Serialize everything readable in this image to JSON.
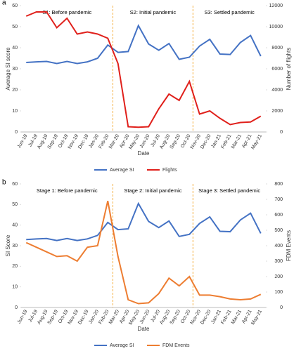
{
  "chart_data": [
    {
      "type": "line",
      "label": "a",
      "categories": [
        "Jun-19",
        "Jul-19",
        "Aug-19",
        "Sep-19",
        "Oct-19",
        "Nov-19",
        "Dec-19",
        "Jan-20",
        "Feb-20",
        "Mar-20",
        "Apr-20",
        "May-20",
        "Jun-20",
        "Jul-20",
        "Aug-20",
        "Sep-20",
        "Oct-20",
        "Nov-20",
        "Dec-20",
        "Jan-21",
        "Feb-21",
        "Mar-21",
        "Apr-21",
        "May-21"
      ],
      "series": [
        {
          "name": "Average SI",
          "color": "#4472c4",
          "values": [
            33,
            33.3,
            33.5,
            32.5,
            33.5,
            32.5,
            33.3,
            35,
            41.3,
            37.8,
            38.2,
            50.5,
            41.8,
            38.8,
            42,
            34.5,
            35.5,
            40.8,
            44,
            37,
            36.8,
            42.5,
            45.8,
            36
          ]
        },
        {
          "name": "Flights",
          "color": "#e0201b",
          "axis": "y2",
          "values": [
            11000,
            11400,
            11400,
            9900,
            10800,
            9300,
            9500,
            9300,
            8900,
            6500,
            500,
            450,
            500,
            2200,
            3600,
            3000,
            4800,
            1700,
            2000,
            1300,
            700,
            900,
            950,
            1500
          ]
        }
      ],
      "xlabel": "Date",
      "ylabel": "Average SI score",
      "y2label": "Number of flights",
      "ylim": [
        0,
        60
      ],
      "yticks": [
        0,
        10,
        20,
        30,
        40,
        50,
        60
      ],
      "y2lim": [
        0,
        12000
      ],
      "y2ticks": [
        0,
        2000,
        4000,
        6000,
        8000,
        10000,
        12000
      ],
      "dividers": [
        8.5,
        16.35
      ],
      "annotations": [
        "S1: Before pandemic",
        "S2: Initial pandemic",
        "S3: Settled pandemic"
      ],
      "legend": "bottom",
      "grid": false
    },
    {
      "type": "line",
      "label": "b",
      "categories": [
        "Jun-19",
        "Jul-19",
        "Aug-19",
        "Sep-19",
        "Oct-19",
        "Nov-19",
        "Dec-19",
        "Jan-20",
        "Feb-20",
        "Mar-20",
        "Apr-20",
        "May-20",
        "Jun-20",
        "Jul-20",
        "Aug-20",
        "Sep-20",
        "Oct-20",
        "Nov-20",
        "Dec-20",
        "Jan-21",
        "Feb-21",
        "Mar-21",
        "Apr-21",
        "May-21"
      ],
      "series": [
        {
          "name": "Average SI",
          "color": "#4472c4",
          "values": [
            33,
            33.3,
            33.5,
            32.5,
            33.5,
            32.5,
            33.3,
            35,
            41.3,
            37.8,
            38.2,
            50.5,
            41.8,
            38.8,
            42,
            34.5,
            35.5,
            40.8,
            44,
            37,
            36.8,
            42.5,
            45.8,
            36
          ]
        },
        {
          "name": "FDM Events",
          "color": "#ed7d31",
          "axis": "y2",
          "values": [
            420,
            390,
            360,
            330,
            335,
            300,
            390,
            400,
            690,
            330,
            50,
            25,
            30,
            90,
            190,
            140,
            200,
            80,
            80,
            70,
            55,
            50,
            55,
            85
          ]
        }
      ],
      "xlabel": "Date",
      "ylabel": "SI Score",
      "y2label": "FDM Events",
      "ylim": [
        0,
        60
      ],
      "yticks": [
        0,
        10,
        20,
        30,
        40,
        50,
        60
      ],
      "y2lim": [
        0,
        800
      ],
      "y2ticks": [
        0,
        100,
        200,
        300,
        400,
        500,
        600,
        700,
        800
      ],
      "dividers": [
        8.5,
        16.35
      ],
      "annotations": [
        "Stage 1: Before pandemic",
        "Stage 2: Initial pandemic",
        "Stage 3: Settled pandemic"
      ],
      "legend": "bottom",
      "grid": false
    }
  ]
}
